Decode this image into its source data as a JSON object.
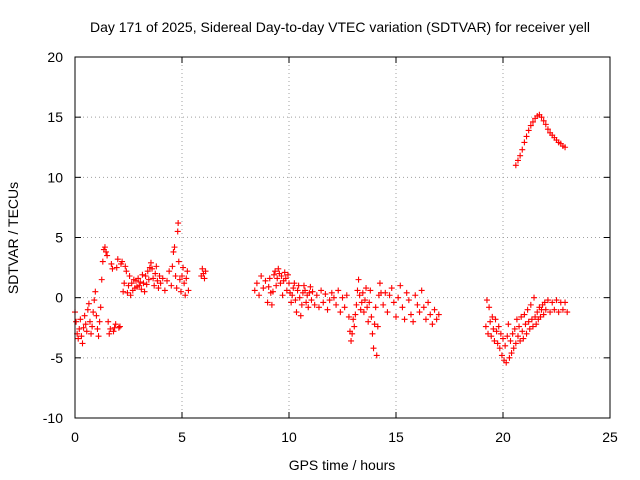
{
  "chart_data": {
    "type": "scatter",
    "title": "Day 171 of 2025, Sidereal Day-to-day VTEC variation (SDTVAR) for receiver yell",
    "xlabel": "GPS time / hours",
    "ylabel": "SDTVAR / TECUs",
    "xlim": [
      0,
      25
    ],
    "ylim": [
      -10,
      20
    ],
    "xticks": [
      0,
      5,
      10,
      15,
      20,
      25
    ],
    "xtick_labels": [
      "0",
      "5",
      "10",
      "15",
      "20",
      "25"
    ],
    "yticks": [
      -10,
      -5,
      0,
      5,
      10,
      15,
      20
    ],
    "ytick_labels": [
      "-10",
      "-5",
      "0",
      "5",
      "10",
      "15",
      "20"
    ],
    "grid": true,
    "marker": "+",
    "series": [
      {
        "name": "SDTVAR",
        "color": "#ff0000",
        "points": [
          [
            0.0,
            -1.2
          ],
          [
            0.05,
            -2.0
          ],
          [
            0.1,
            -3.0
          ],
          [
            0.15,
            -3.4
          ],
          [
            0.2,
            -2.6
          ],
          [
            0.25,
            -1.8
          ],
          [
            0.3,
            -3.2
          ],
          [
            0.35,
            -3.8
          ],
          [
            0.4,
            -2.5
          ],
          [
            0.45,
            -1.5
          ],
          [
            0.5,
            -2.2
          ],
          [
            0.55,
            -2.8
          ],
          [
            0.6,
            -1.0
          ],
          [
            0.65,
            -0.5
          ],
          [
            0.7,
            -2.0
          ],
          [
            0.75,
            -3.0
          ],
          [
            0.8,
            -2.4
          ],
          [
            0.85,
            -1.2
          ],
          [
            0.9,
            -0.2
          ],
          [
            0.95,
            0.5
          ],
          [
            1.0,
            -1.5
          ],
          [
            1.05,
            -2.6
          ],
          [
            1.1,
            -3.2
          ],
          [
            1.15,
            -2.0
          ],
          [
            1.2,
            -0.8
          ],
          [
            1.25,
            1.5
          ],
          [
            1.3,
            3.0
          ],
          [
            1.35,
            4.0
          ],
          [
            1.4,
            4.2
          ],
          [
            1.45,
            3.8
          ],
          [
            1.5,
            3.5
          ],
          [
            1.55,
            -2.0
          ],
          [
            1.6,
            -3.0
          ],
          [
            1.65,
            -2.6
          ],
          [
            1.7,
            2.8
          ],
          [
            1.75,
            2.4
          ],
          [
            1.8,
            -2.8
          ],
          [
            1.85,
            -2.5
          ],
          [
            1.9,
            -2.2
          ],
          [
            1.95,
            2.5
          ],
          [
            2.0,
            3.2
          ],
          [
            2.05,
            -2.5
          ],
          [
            2.1,
            -2.4
          ],
          [
            2.15,
            2.8
          ],
          [
            2.2,
            3.0
          ],
          [
            2.25,
            0.5
          ],
          [
            2.3,
            1.2
          ],
          [
            2.35,
            2.6
          ],
          [
            2.4,
            2.2
          ],
          [
            2.45,
            0.4
          ],
          [
            2.5,
            1.0
          ],
          [
            2.55,
            1.8
          ],
          [
            2.6,
            0.2
          ],
          [
            2.65,
            1.2
          ],
          [
            2.7,
            0.6
          ],
          [
            2.75,
            1.5
          ],
          [
            2.8,
            0.8
          ],
          [
            2.85,
            1.4
          ],
          [
            2.9,
            0.9
          ],
          [
            2.95,
            1.6
          ],
          [
            3.0,
            1.0
          ],
          [
            3.05,
            1.3
          ],
          [
            3.1,
            0.7
          ],
          [
            3.15,
            1.9
          ],
          [
            3.2,
            1.2
          ],
          [
            3.25,
            0.5
          ],
          [
            3.3,
            1.8
          ],
          [
            3.35,
            1.1
          ],
          [
            3.4,
            2.2
          ],
          [
            3.45,
            1.5
          ],
          [
            3.5,
            2.5
          ],
          [
            3.55,
            2.9
          ],
          [
            3.6,
            2.4
          ],
          [
            3.65,
            1.6
          ],
          [
            3.7,
            1.0
          ],
          [
            3.75,
            2.0
          ],
          [
            3.8,
            2.6
          ],
          [
            3.85,
            1.4
          ],
          [
            3.9,
            0.8
          ],
          [
            3.95,
            1.8
          ],
          [
            4.0,
            1.2
          ],
          [
            4.1,
            1.6
          ],
          [
            4.2,
            0.6
          ],
          [
            4.3,
            1.4
          ],
          [
            4.4,
            2.2
          ],
          [
            4.5,
            1.0
          ],
          [
            4.55,
            2.6
          ],
          [
            4.6,
            3.8
          ],
          [
            4.65,
            4.2
          ],
          [
            4.7,
            1.8
          ],
          [
            4.75,
            0.8
          ],
          [
            4.8,
            5.5
          ],
          [
            4.82,
            6.2
          ],
          [
            4.85,
            3.0
          ],
          [
            4.9,
            1.5
          ],
          [
            4.95,
            0.5
          ],
          [
            5.0,
            1.8
          ],
          [
            5.05,
            2.5
          ],
          [
            5.1,
            1.2
          ],
          [
            5.15,
            0.2
          ],
          [
            5.2,
            1.6
          ],
          [
            5.25,
            2.2
          ],
          [
            5.3,
            0.6
          ],
          [
            5.9,
            1.8
          ],
          [
            5.95,
            2.4
          ],
          [
            6.0,
            2.0
          ],
          [
            6.05,
            1.6
          ],
          [
            6.1,
            2.2
          ],
          [
            8.4,
            0.6
          ],
          [
            8.5,
            1.2
          ],
          [
            8.6,
            0.2
          ],
          [
            8.7,
            1.8
          ],
          [
            8.8,
            0.8
          ],
          [
            8.9,
            1.4
          ],
          [
            9.0,
            -0.4
          ],
          [
            9.05,
            0.9
          ],
          [
            9.1,
            1.6
          ],
          [
            9.15,
            0.4
          ],
          [
            9.2,
            -0.6
          ],
          [
            9.25,
            0.5
          ],
          [
            9.3,
            1.9
          ],
          [
            9.35,
            2.2
          ],
          [
            9.4,
            1.0
          ],
          [
            9.45,
            1.6
          ],
          [
            9.5,
            2.4
          ],
          [
            9.55,
            2.0
          ],
          [
            9.6,
            1.2
          ],
          [
            9.65,
            1.8
          ],
          [
            9.7,
            0.2
          ],
          [
            9.75,
            1.4
          ],
          [
            9.8,
            2.1
          ],
          [
            9.85,
            1.6
          ],
          [
            9.9,
            0.6
          ],
          [
            9.95,
            1.9
          ],
          [
            10.0,
            1.2
          ],
          [
            10.05,
            0.4
          ],
          [
            10.1,
            -0.4
          ],
          [
            10.15,
            0.2
          ],
          [
            10.2,
            0.8
          ],
          [
            10.25,
            1.2
          ],
          [
            10.3,
            -0.2
          ],
          [
            10.35,
            -1.2
          ],
          [
            10.4,
            0.6
          ],
          [
            10.45,
            1.0
          ],
          [
            10.5,
            0.0
          ],
          [
            10.55,
            -1.5
          ],
          [
            10.6,
            -0.6
          ],
          [
            10.65,
            0.4
          ],
          [
            10.7,
            1.0
          ],
          [
            10.75,
            0.6
          ],
          [
            10.8,
            -0.4
          ],
          [
            10.85,
            0.2
          ],
          [
            10.9,
            -0.8
          ],
          [
            10.95,
            0.4
          ],
          [
            11.0,
            0.9
          ],
          [
            11.05,
            -0.2
          ],
          [
            11.1,
            0.5
          ],
          [
            11.2,
            -0.6
          ],
          [
            11.3,
            0.2
          ],
          [
            11.4,
            -0.8
          ],
          [
            11.5,
            0.6
          ],
          [
            11.6,
            -0.4
          ],
          [
            11.7,
            0.3
          ],
          [
            11.8,
            -1.0
          ],
          [
            11.9,
            -0.2
          ],
          [
            12.0,
            0.4
          ],
          [
            12.1,
            0.0
          ],
          [
            12.2,
            -0.6
          ],
          [
            12.3,
            0.6
          ],
          [
            12.4,
            -1.2
          ],
          [
            12.5,
            0.0
          ],
          [
            12.6,
            -0.8
          ],
          [
            12.7,
            0.2
          ],
          [
            12.8,
            -1.6
          ],
          [
            12.85,
            -2.8
          ],
          [
            12.9,
            -3.6
          ],
          [
            12.95,
            -3.0
          ],
          [
            13.0,
            -1.8
          ],
          [
            13.05,
            -2.4
          ],
          [
            13.1,
            -1.4
          ],
          [
            13.15,
            -0.6
          ],
          [
            13.2,
            0.6
          ],
          [
            13.25,
            1.5
          ],
          [
            13.3,
            0.2
          ],
          [
            13.35,
            -1.0
          ],
          [
            13.4,
            -0.4
          ],
          [
            13.45,
            0.4
          ],
          [
            13.5,
            -1.2
          ],
          [
            13.55,
            -0.2
          ],
          [
            13.6,
            0.8
          ],
          [
            13.65,
            -0.8
          ],
          [
            13.7,
            -2.0
          ],
          [
            13.75,
            -0.4
          ],
          [
            13.8,
            0.6
          ],
          [
            13.85,
            -1.6
          ],
          [
            13.9,
            -3.0
          ],
          [
            13.95,
            -4.2
          ],
          [
            14.0,
            -2.2
          ],
          [
            14.05,
            -0.8
          ],
          [
            14.1,
            -4.8
          ],
          [
            14.15,
            -2.4
          ],
          [
            14.2,
            0.2
          ],
          [
            14.25,
            1.2
          ],
          [
            14.3,
            0.4
          ],
          [
            14.4,
            -0.6
          ],
          [
            14.5,
            0.4
          ],
          [
            14.6,
            -1.2
          ],
          [
            14.7,
            0.2
          ],
          [
            14.8,
            0.8
          ],
          [
            14.9,
            -0.4
          ],
          [
            15.0,
            -1.6
          ],
          [
            15.1,
            0.0
          ],
          [
            15.2,
            1.0
          ],
          [
            15.3,
            -0.8
          ],
          [
            15.4,
            -1.8
          ],
          [
            15.5,
            0.4
          ],
          [
            15.6,
            -0.2
          ],
          [
            15.7,
            -1.4
          ],
          [
            15.8,
            -2.0
          ],
          [
            15.9,
            0.2
          ],
          [
            16.0,
            -0.6
          ],
          [
            16.1,
            -1.2
          ],
          [
            16.2,
            0.6
          ],
          [
            16.3,
            -0.8
          ],
          [
            16.4,
            -1.8
          ],
          [
            16.5,
            -0.4
          ],
          [
            16.6,
            -1.4
          ],
          [
            16.7,
            -2.2
          ],
          [
            16.8,
            -1.0
          ],
          [
            16.9,
            -1.8
          ],
          [
            17.0,
            -1.4
          ],
          [
            19.2,
            -2.4
          ],
          [
            19.25,
            -0.2
          ],
          [
            19.3,
            -3.0
          ],
          [
            19.35,
            -0.8
          ],
          [
            19.4,
            -2.0
          ],
          [
            19.45,
            -3.2
          ],
          [
            19.5,
            -1.6
          ],
          [
            19.55,
            -2.6
          ],
          [
            19.6,
            -3.6
          ],
          [
            19.65,
            -1.8
          ],
          [
            19.7,
            -2.8
          ],
          [
            19.75,
            -3.8
          ],
          [
            19.8,
            -2.4
          ],
          [
            19.85,
            -4.2
          ],
          [
            19.9,
            -3.0
          ],
          [
            19.95,
            -4.8
          ],
          [
            20.0,
            -3.4
          ],
          [
            20.05,
            -5.2
          ],
          [
            20.1,
            -4.0
          ],
          [
            20.15,
            -5.4
          ],
          [
            20.2,
            -3.2
          ],
          [
            20.25,
            -2.2
          ],
          [
            20.3,
            -5.0
          ],
          [
            20.35,
            -3.6
          ],
          [
            20.4,
            -4.6
          ],
          [
            20.45,
            -3.0
          ],
          [
            20.5,
            -4.2
          ],
          [
            20.55,
            -2.6
          ],
          [
            20.6,
            -3.8
          ],
          [
            20.65,
            -1.8
          ],
          [
            20.7,
            -3.2
          ],
          [
            20.75,
            -2.4
          ],
          [
            20.8,
            -3.6
          ],
          [
            20.85,
            -1.6
          ],
          [
            20.9,
            -2.8
          ],
          [
            20.95,
            -3.4
          ],
          [
            21.0,
            -1.4
          ],
          [
            21.05,
            -2.2
          ],
          [
            21.1,
            -3.0
          ],
          [
            21.15,
            -1.0
          ],
          [
            21.2,
            -2.0
          ],
          [
            21.25,
            -2.6
          ],
          [
            21.3,
            -0.6
          ],
          [
            21.35,
            -1.8
          ],
          [
            21.4,
            -2.4
          ],
          [
            21.45,
            0.0
          ],
          [
            21.5,
            -1.6
          ],
          [
            21.55,
            -2.2
          ],
          [
            21.6,
            -1.2
          ],
          [
            21.65,
            -1.8
          ],
          [
            21.7,
            -0.8
          ],
          [
            21.75,
            -1.6
          ],
          [
            21.8,
            -1.0
          ],
          [
            21.85,
            -0.6
          ],
          [
            21.9,
            -1.4
          ],
          [
            21.95,
            -0.4
          ],
          [
            22.0,
            -1.0
          ],
          [
            22.1,
            -0.2
          ],
          [
            22.2,
            -1.2
          ],
          [
            22.3,
            -0.4
          ],
          [
            22.4,
            -1.0
          ],
          [
            22.5,
            -0.2
          ],
          [
            22.6,
            -1.2
          ],
          [
            22.7,
            -0.4
          ],
          [
            22.8,
            -1.0
          ],
          [
            22.9,
            -0.4
          ],
          [
            23.0,
            -1.2
          ],
          [
            20.6,
            11.0
          ],
          [
            20.7,
            11.4
          ],
          [
            20.8,
            11.8
          ],
          [
            20.9,
            12.3
          ],
          [
            21.0,
            12.9
          ],
          [
            21.1,
            13.4
          ],
          [
            21.2,
            13.9
          ],
          [
            21.3,
            14.3
          ],
          [
            21.4,
            14.6
          ],
          [
            21.5,
            14.9
          ],
          [
            21.6,
            15.1
          ],
          [
            21.7,
            15.2
          ],
          [
            21.8,
            15.0
          ],
          [
            21.9,
            14.7
          ],
          [
            22.0,
            14.4
          ],
          [
            22.1,
            14.0
          ],
          [
            22.2,
            13.7
          ],
          [
            22.3,
            13.5
          ],
          [
            22.4,
            13.3
          ],
          [
            22.5,
            13.1
          ],
          [
            22.6,
            12.9
          ],
          [
            22.7,
            12.8
          ],
          [
            22.8,
            12.6
          ],
          [
            22.9,
            12.5
          ]
        ]
      }
    ]
  }
}
